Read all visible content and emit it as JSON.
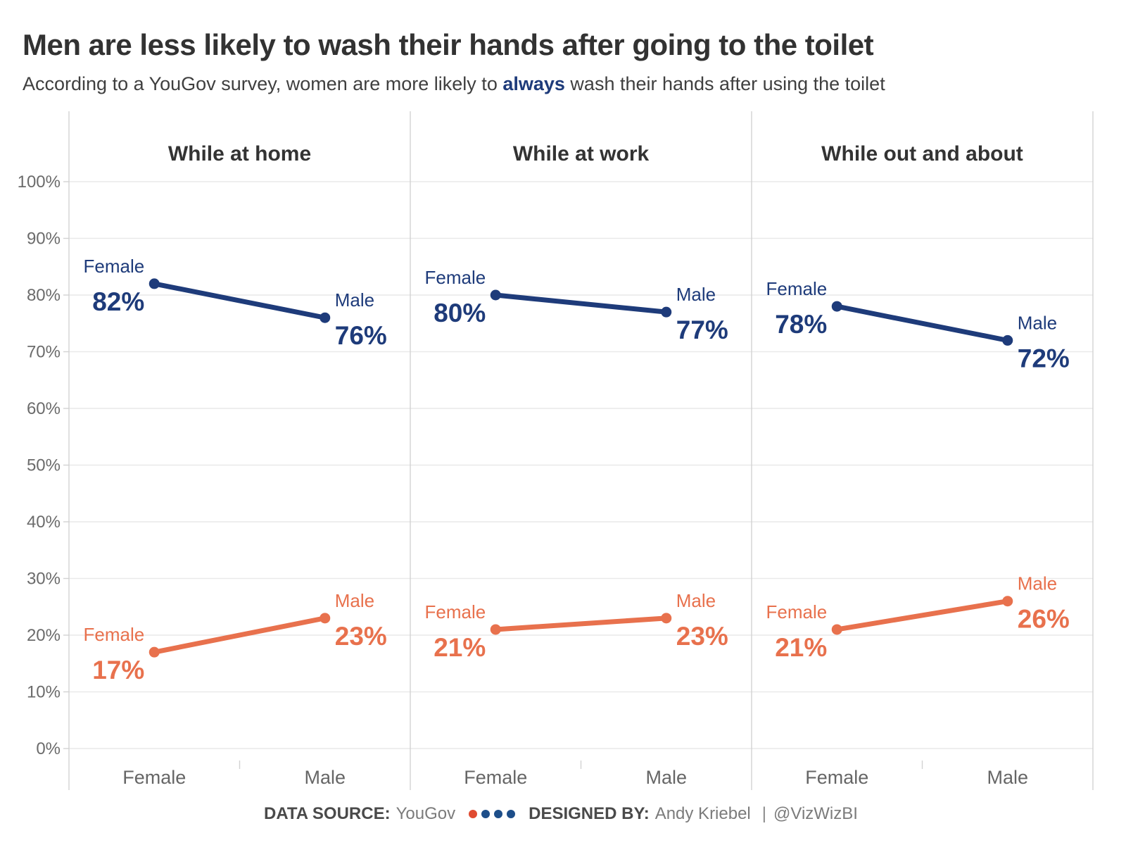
{
  "header": {
    "title": "Men are less likely to wash their hands after going to the toilet",
    "subtitle_prefix": "According to a YouGov survey, women are more likely to ",
    "subtitle_emphasis": "always",
    "subtitle_suffix": " wash their hands after using the toilet"
  },
  "chart_data": {
    "type": "line",
    "chart_style": "slope-chart-small-multiples",
    "categories": [
      "Female",
      "Male"
    ],
    "y_axis": {
      "min": 0,
      "max": 100,
      "step": 10,
      "suffix": "%",
      "tick_labels": [
        "0%",
        "10%",
        "20%",
        "30%",
        "40%",
        "50%",
        "60%",
        "70%",
        "80%",
        "90%",
        "100%"
      ]
    },
    "grid": true,
    "legend": "none",
    "panels": [
      {
        "title": "While at home",
        "lines": [
          {
            "color": "navy",
            "points": [
              {
                "category": "Female",
                "value": 82
              },
              {
                "category": "Male",
                "value": 76
              }
            ]
          },
          {
            "color": "orange",
            "points": [
              {
                "category": "Female",
                "value": 17
              },
              {
                "category": "Male",
                "value": 23
              }
            ]
          }
        ]
      },
      {
        "title": "While at work",
        "lines": [
          {
            "color": "navy",
            "points": [
              {
                "category": "Female",
                "value": 80
              },
              {
                "category": "Male",
                "value": 77
              }
            ]
          },
          {
            "color": "orange",
            "points": [
              {
                "category": "Female",
                "value": 21
              },
              {
                "category": "Male",
                "value": 23
              }
            ]
          }
        ]
      },
      {
        "title": "While out and about",
        "lines": [
          {
            "color": "navy",
            "points": [
              {
                "category": "Female",
                "value": 78
              },
              {
                "category": "Male",
                "value": 72
              }
            ]
          },
          {
            "color": "orange",
            "points": [
              {
                "category": "Female",
                "value": 21
              },
              {
                "category": "Male",
                "value": 26
              }
            ]
          }
        ]
      }
    ]
  },
  "footer": {
    "data_source_label": "DATA SOURCE:",
    "data_source_value": "YouGov",
    "designed_by_label": "DESIGNED BY:",
    "designed_by_value": "Andy Kriebel",
    "separator": "|",
    "handle": "@VizWizBI",
    "dots": [
      "dot_red",
      "dot_navy",
      "dot_navy",
      "dot_navy"
    ]
  },
  "colors": {
    "navy": "#1e3b7a",
    "orange": "#e8714d",
    "dot_red": "#e04b31",
    "dot_navy": "#1d4e89",
    "grid_line": "#e9e9e9",
    "axis_line": "#d2d2d2",
    "tick_label": "#6b6b6b",
    "category_label": "#666666",
    "panel_title": "#333333"
  }
}
